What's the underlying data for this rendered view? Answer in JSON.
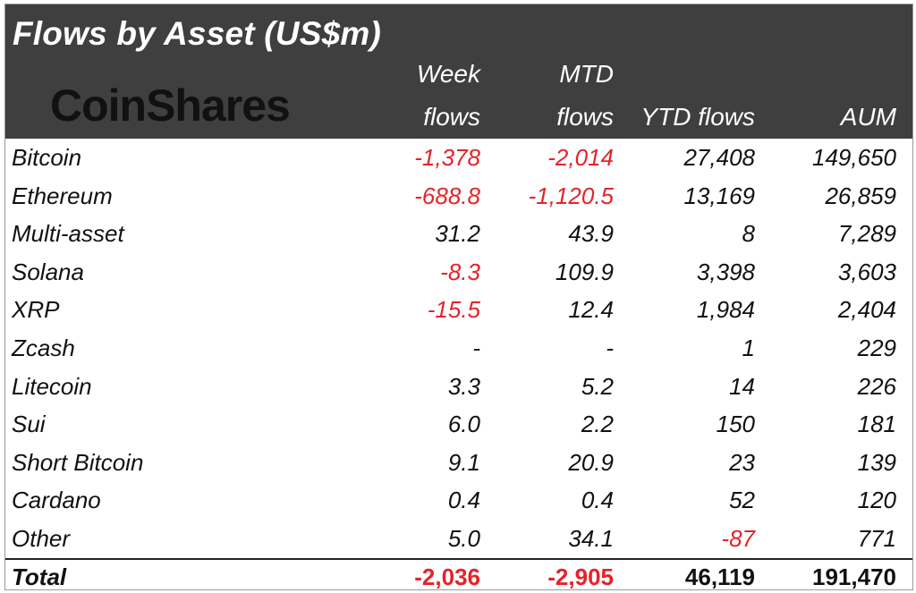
{
  "title": "Flows by Asset (US$m)",
  "logo_text": "CoinShares",
  "columns": {
    "week_line1": "Week",
    "week_line2": "flows",
    "mtd_line1": "MTD",
    "mtd_line2": "flows",
    "ytd": "YTD flows",
    "aum": "AUM"
  },
  "colors": {
    "header_bg": "#3f3f3f",
    "negative": "#e4232a"
  },
  "rows": [
    {
      "asset": "Bitcoin",
      "week": "-1,378",
      "mtd": "-2,014",
      "ytd": "27,408",
      "aum": "149,650"
    },
    {
      "asset": "Ethereum",
      "week": "-688.8",
      "mtd": "-1,120.5",
      "ytd": "13,169",
      "aum": "26,859"
    },
    {
      "asset": "Multi-asset",
      "week": "31.2",
      "mtd": "43.9",
      "ytd": "8",
      "aum": "7,289"
    },
    {
      "asset": "Solana",
      "week": "-8.3",
      "mtd": "109.9",
      "ytd": "3,398",
      "aum": "3,603"
    },
    {
      "asset": "XRP",
      "week": "-15.5",
      "mtd": "12.4",
      "ytd": "1,984",
      "aum": "2,404"
    },
    {
      "asset": "Zcash",
      "week": "-",
      "mtd": "-",
      "ytd": "1",
      "aum": "229"
    },
    {
      "asset": "Litecoin",
      "week": "3.3",
      "mtd": "5.2",
      "ytd": "14",
      "aum": "226"
    },
    {
      "asset": "Sui",
      "week": "6.0",
      "mtd": "2.2",
      "ytd": "150",
      "aum": "181"
    },
    {
      "asset": "Short Bitcoin",
      "week": "9.1",
      "mtd": "20.9",
      "ytd": "23",
      "aum": "139"
    },
    {
      "asset": "Cardano",
      "week": "0.4",
      "mtd": "0.4",
      "ytd": "52",
      "aum": "120"
    },
    {
      "asset": "Other",
      "week": "5.0",
      "mtd": "34.1",
      "ytd": "-87",
      "aum": "771"
    }
  ],
  "total": {
    "label": "Total",
    "week": "-2,036",
    "mtd": "-2,905",
    "ytd": "46,119",
    "aum": "191,470"
  }
}
